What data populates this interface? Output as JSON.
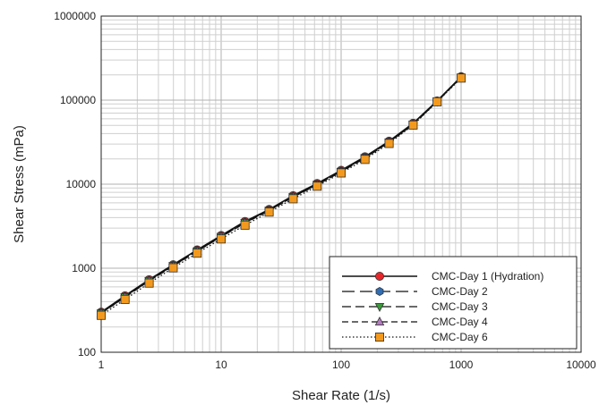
{
  "chart_data": {
    "type": "line",
    "xscale": "log",
    "yscale": "log",
    "xlabel": "Shear Rate (1/s)",
    "ylabel": "Shear Stress (mPa)",
    "xlim": [
      1,
      10000
    ],
    "ylim": [
      100,
      1000000
    ],
    "xticks": [
      "1",
      "10",
      "100",
      "1000",
      "10000"
    ],
    "yticks": [
      "100",
      "1000",
      "10000",
      "100000",
      "1000000"
    ],
    "grid": true,
    "legend_position": "bottom-right",
    "x": [
      1,
      1.58,
      2.51,
      3.98,
      6.31,
      10,
      15.8,
      25.1,
      39.8,
      63.1,
      100,
      158,
      251,
      398,
      631,
      1000
    ],
    "series": [
      {
        "name": "CMC-Day 1 (Hydration)",
        "line": "solid",
        "marker": "circle",
        "color": "#e8262a",
        "values": [
          300,
          470,
          730,
          1100,
          1650,
          2450,
          3600,
          5000,
          7300,
          10200,
          14600,
          21200,
          32500,
          53000,
          98000,
          190000
        ]
      },
      {
        "name": "CMC-Day 2",
        "line": "longdash",
        "marker": "hexagon",
        "color": "#2f6db5",
        "values": [
          295,
          460,
          715,
          1080,
          1620,
          2400,
          3520,
          4920,
          7150,
          10000,
          14300,
          20800,
          32000,
          52000,
          97000,
          188000
        ]
      },
      {
        "name": "CMC-Day 3",
        "line": "dash",
        "marker": "triangle-down",
        "color": "#3a9a3a",
        "values": [
          292,
          455,
          710,
          1070,
          1600,
          2380,
          3480,
          4870,
          7080,
          9900,
          14150,
          20600,
          31700,
          51500,
          96500,
          187000
        ]
      },
      {
        "name": "CMC-Day 4",
        "line": "shortdash",
        "marker": "triangle-up",
        "color": "#b47cc0",
        "values": [
          290,
          452,
          705,
          1060,
          1590,
          2360,
          3450,
          4830,
          7020,
          9820,
          14050,
          20450,
          31500,
          51200,
          96000,
          186000
        ]
      },
      {
        "name": "CMC-Day 6",
        "line": "dotted",
        "marker": "square",
        "color": "#f39a1e",
        "values": [
          275,
          425,
          665,
          1010,
          1510,
          2230,
          3250,
          4650,
          6700,
          9450,
          13600,
          19700,
          30500,
          50500,
          95500,
          183000
        ]
      }
    ]
  }
}
